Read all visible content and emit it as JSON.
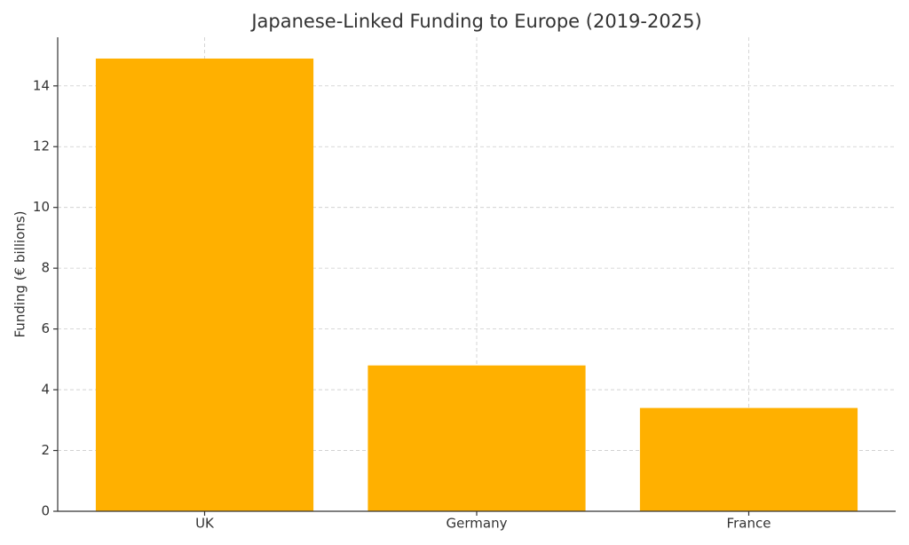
{
  "chart_data": {
    "type": "bar",
    "title": "Japanese-Linked Funding to Europe (2019-2025)",
    "y_label": "Funding (€ billions)",
    "categories": [
      "UK",
      "Germany",
      "France"
    ],
    "values": [
      14.9,
      4.8,
      3.4
    ],
    "color": "#ffb000",
    "ylim": [
      0,
      15.6
    ],
    "yticks": [
      0,
      2,
      4,
      6,
      8,
      10,
      12,
      14
    ],
    "grid": true
  }
}
